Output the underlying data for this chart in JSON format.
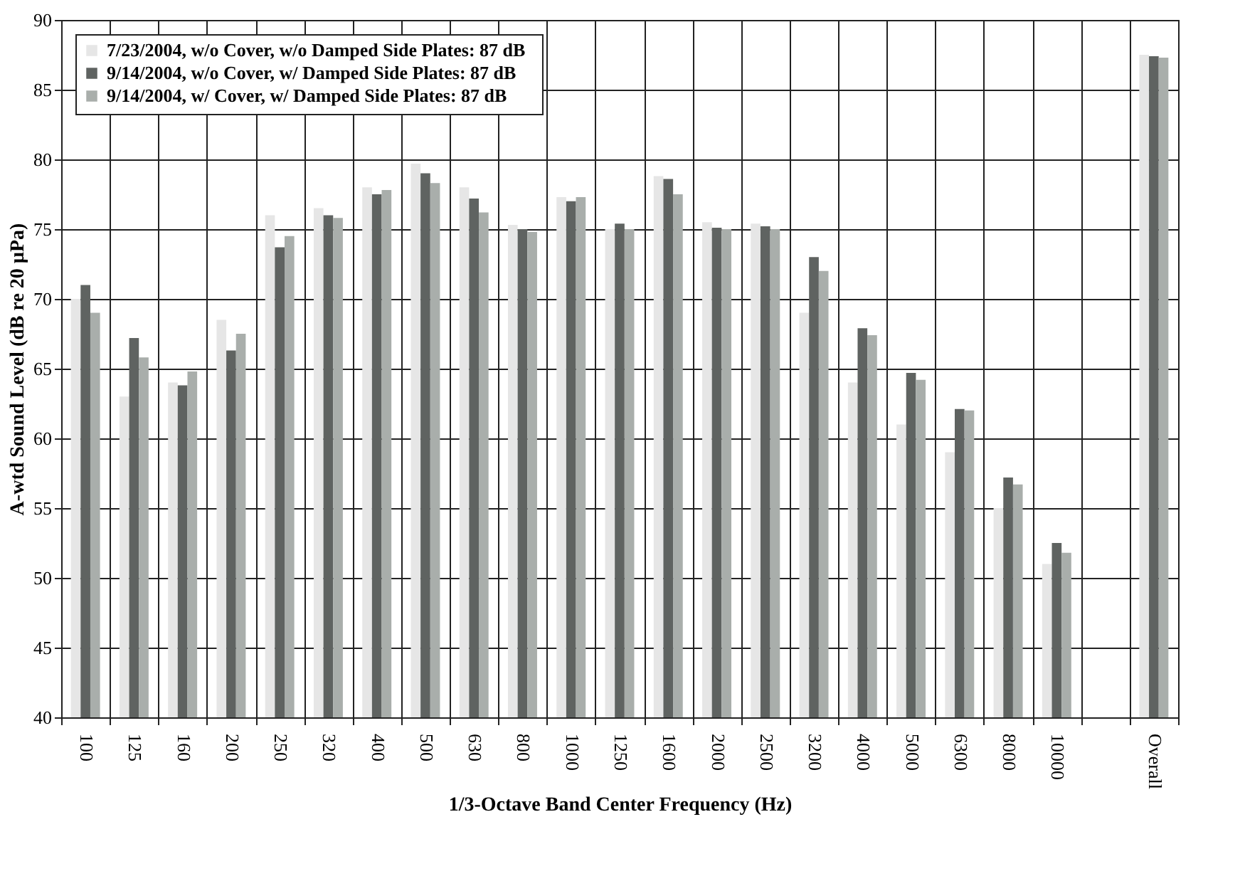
{
  "chart_data": {
    "type": "bar",
    "xlabel": "1/3-Octave Band Center Frequency (Hz)",
    "ylabel": "A-wtd Sound Level (dB re 20 µPa)",
    "categories": [
      "100",
      "125",
      "160",
      "200",
      "250",
      "320",
      "400",
      "500",
      "630",
      "800",
      "1000",
      "1250",
      "1600",
      "2000",
      "2500",
      "3200",
      "4000",
      "5000",
      "6300",
      "8000",
      "10000",
      null,
      "Overall"
    ],
    "series": [
      {
        "name": "7/23/2004, w/o Cover, w/o Damped Side Plates:   87 dB",
        "color": "#e6e6e6",
        "values": [
          70,
          63,
          64,
          68.5,
          76,
          76.5,
          78,
          79.7,
          78,
          75.3,
          77.3,
          75,
          78.8,
          75.5,
          75.4,
          69,
          64,
          61,
          59,
          55,
          51,
          null,
          87.5
        ]
      },
      {
        "name": "9/14/2004, w/o Cover, w/ Damped Side Plates:   87 dB",
        "color": "#5f6361",
        "values": [
          71,
          67.2,
          63.8,
          66.3,
          73.7,
          76,
          77.5,
          79,
          77.2,
          75,
          77,
          75.4,
          78.6,
          75.1,
          75.2,
          73,
          67.9,
          64.7,
          62.1,
          57.2,
          52.5,
          null,
          87.4
        ]
      },
      {
        "name": "9/14/2004, w/ Cover, w/ Damped Side Plates:   87 dB",
        "color": "#a9aeab",
        "values": [
          69,
          65.8,
          64.8,
          67.5,
          74.5,
          75.8,
          77.8,
          78.3,
          76.2,
          74.8,
          77.3,
          75,
          77.5,
          75,
          75,
          72,
          67.4,
          64.2,
          62,
          56.7,
          51.8,
          null,
          87.3
        ]
      }
    ],
    "ylim": [
      40,
      90
    ],
    "yticks": [
      40,
      45,
      50,
      55,
      60,
      65,
      70,
      75,
      80,
      85,
      90
    ],
    "grid": true,
    "legend": "top left"
  }
}
